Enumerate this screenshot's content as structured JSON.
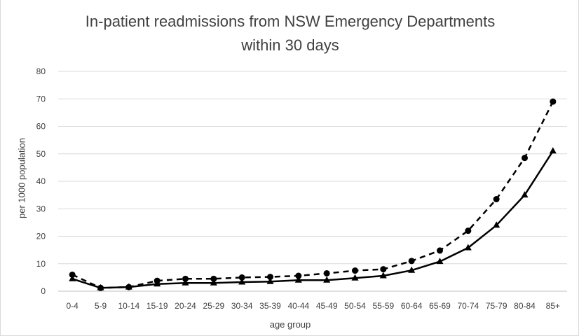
{
  "chart_data": {
    "type": "line",
    "title_line1": "In-patient readmissions from NSW Emergency Departments",
    "title_line2": "within 30 days",
    "xlabel": "age group",
    "ylabel": "per 1000 population",
    "ylim": [
      0,
      80
    ],
    "yticks": [
      0,
      10,
      20,
      30,
      40,
      50,
      60,
      70,
      80
    ],
    "grid": true,
    "legend": "none",
    "categories": [
      "0-4",
      "5-9",
      "10-14",
      "15-19",
      "20-24",
      "25-29",
      "30-34",
      "35-39",
      "40-44",
      "45-49",
      "50-54",
      "55-59",
      "60-64",
      "65-69",
      "70-74",
      "75-79",
      "80-84",
      "85+"
    ],
    "series": [
      {
        "style": "dashed",
        "marker": "circle",
        "color": "#000000",
        "values": [
          6,
          1.2,
          1.5,
          3.8,
          4.5,
          4.5,
          5,
          5.2,
          5.6,
          6.5,
          7.5,
          8,
          11,
          14.8,
          22,
          33.5,
          48.5,
          69
        ]
      },
      {
        "style": "solid",
        "marker": "triangle",
        "color": "#000000",
        "values": [
          4.5,
          1.2,
          1.5,
          2.6,
          3,
          3,
          3.3,
          3.5,
          4,
          4,
          4.8,
          5.6,
          7.6,
          10.8,
          15.8,
          24,
          35,
          51
        ]
      }
    ]
  }
}
